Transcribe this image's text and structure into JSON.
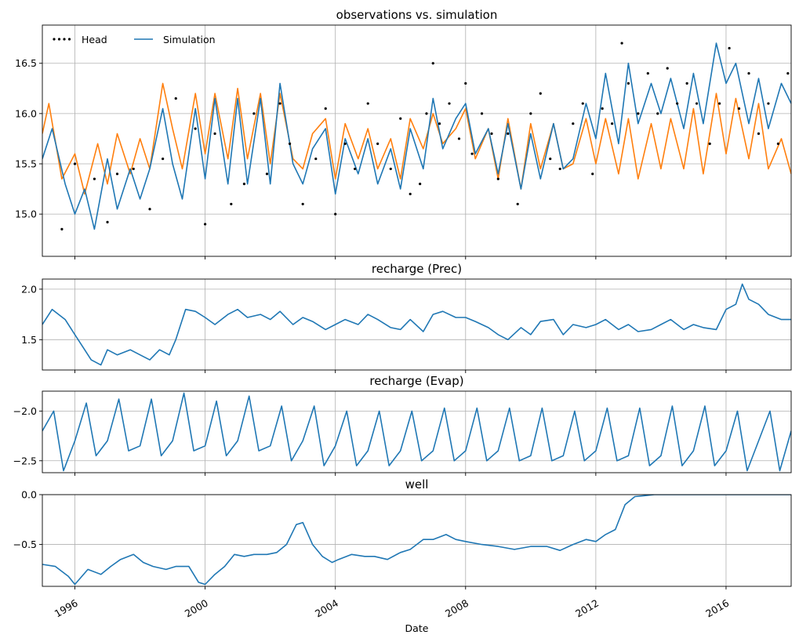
{
  "chart_data": [
    {
      "type": "line",
      "title": "observations vs. simulation",
      "xlabel": "",
      "ylabel": "",
      "xlim": [
        1995.0,
        2018.0
      ],
      "ylim": [
        14.58,
        16.88
      ],
      "yticks": [
        15.0,
        15.5,
        16.0,
        16.5
      ],
      "ytick_labels": [
        "15.0",
        "15.5",
        "16.0",
        "16.5"
      ],
      "grid": true,
      "legend_placement": "top-left",
      "series": [
        {
          "name": "Head",
          "style": "dots",
          "color": "#000000",
          "x": [
            1995.6,
            1996.0,
            1996.6,
            1997.0,
            1997.3,
            1997.8,
            1998.3,
            1998.7,
            1999.1,
            1999.7,
            2000.0,
            2000.3,
            2000.8,
            2001.2,
            2001.5,
            2001.9,
            2002.3,
            2002.6,
            2003.0,
            2003.4,
            2003.7,
            2004.0,
            2004.3,
            2004.6,
            2005.0,
            2005.3,
            2005.7,
            2006.0,
            2006.3,
            2006.6,
            2006.8,
            2007.0,
            2007.2,
            2007.5,
            2007.8,
            2008.0,
            2008.2,
            2008.5,
            2008.8,
            2009.0,
            2009.3,
            2009.6,
            2010.0,
            2010.3,
            2010.6,
            2010.9,
            2011.3,
            2011.6,
            2011.9,
            2012.2,
            2012.5,
            2012.8,
            2013.0,
            2013.3,
            2013.6,
            2013.9,
            2014.2,
            2014.5,
            2014.8,
            2015.1,
            2015.5,
            2015.8,
            2016.1,
            2016.4,
            2016.7,
            2017.0,
            2017.3,
            2017.6,
            2017.9
          ],
          "y": [
            14.85,
            15.5,
            15.35,
            14.92,
            15.4,
            15.45,
            15.05,
            15.55,
            16.15,
            15.85,
            14.9,
            15.8,
            15.1,
            15.3,
            16.0,
            15.4,
            16.1,
            15.7,
            15.1,
            15.55,
            16.05,
            15.0,
            15.7,
            15.45,
            16.1,
            15.7,
            15.45,
            15.95,
            15.2,
            15.3,
            16.0,
            16.5,
            15.9,
            16.1,
            15.75,
            16.3,
            15.6,
            16.0,
            15.8,
            15.35,
            15.8,
            15.1,
            16.0,
            16.2,
            15.55,
            15.45,
            15.9,
            16.1,
            15.4,
            16.05,
            15.9,
            16.7,
            16.3,
            16.0,
            16.4,
            16.0,
            16.45,
            16.1,
            16.3,
            16.1,
            15.7,
            16.1,
            16.65,
            16.05,
            16.4,
            15.8,
            16.1,
            15.7,
            16.4
          ]
        },
        {
          "name": "Simulation",
          "color": "#1f77b4",
          "x": [
            1995.0,
            1995.3,
            1995.7,
            1996.0,
            1996.3,
            1996.6,
            1997.0,
            1997.3,
            1997.7,
            1998.0,
            1998.3,
            1998.7,
            1999.0,
            1999.3,
            1999.7,
            2000.0,
            2000.3,
            2000.7,
            2001.0,
            2001.3,
            2001.7,
            2002.0,
            2002.3,
            2002.7,
            2003.0,
            2003.3,
            2003.7,
            2004.0,
            2004.3,
            2004.7,
            2005.0,
            2005.3,
            2005.7,
            2006.0,
            2006.3,
            2006.7,
            2007.0,
            2007.3,
            2007.7,
            2008.0,
            2008.3,
            2008.7,
            2009.0,
            2009.3,
            2009.7,
            2010.0,
            2010.3,
            2010.7,
            2011.0,
            2011.3,
            2011.7,
            2012.0,
            2012.3,
            2012.7,
            2013.0,
            2013.3,
            2013.7,
            2014.0,
            2014.3,
            2014.7,
            2015.0,
            2015.3,
            2015.7,
            2016.0,
            2016.3,
            2016.7,
            2017.0,
            2017.3,
            2017.7,
            2018.0
          ],
          "y": [
            15.55,
            15.85,
            15.3,
            15.0,
            15.25,
            14.85,
            15.55,
            15.05,
            15.45,
            15.15,
            15.45,
            16.05,
            15.5,
            15.15,
            16.05,
            15.35,
            16.15,
            15.3,
            16.15,
            15.3,
            16.15,
            15.3,
            16.3,
            15.5,
            15.3,
            15.65,
            15.85,
            15.2,
            15.75,
            15.4,
            15.75,
            15.3,
            15.65,
            15.25,
            15.85,
            15.45,
            16.15,
            15.65,
            15.95,
            16.1,
            15.6,
            15.85,
            15.4,
            15.9,
            15.25,
            15.8,
            15.35,
            15.9,
            15.45,
            15.55,
            16.1,
            15.75,
            16.4,
            15.7,
            16.5,
            15.9,
            16.3,
            16.0,
            16.35,
            15.85,
            16.4,
            15.9,
            16.7,
            16.3,
            16.5,
            15.9,
            16.35,
            15.85,
            16.3,
            16.1
          ]
        },
        {
          "name": "",
          "color": "#ff7f0e",
          "x": [
            1995.0,
            1995.2,
            1995.6,
            1996.0,
            1996.3,
            1996.7,
            1997.0,
            1997.3,
            1997.7,
            1998.0,
            1998.3,
            1998.7,
            1999.0,
            1999.3,
            1999.7,
            2000.0,
            2000.3,
            2000.7,
            2001.0,
            2001.3,
            2001.7,
            2002.0,
            2002.3,
            2002.7,
            2003.0,
            2003.3,
            2003.7,
            2004.0,
            2004.3,
            2004.7,
            2005.0,
            2005.3,
            2005.7,
            2006.0,
            2006.3,
            2006.7,
            2007.0,
            2007.3,
            2007.7,
            2008.0,
            2008.3,
            2008.7,
            2009.0,
            2009.3,
            2009.7,
            2010.0,
            2010.3,
            2010.7,
            2011.0,
            2011.3,
            2011.7,
            2012.0,
            2012.3,
            2012.7,
            2013.0,
            2013.3,
            2013.7,
            2014.0,
            2014.3,
            2014.7,
            2015.0,
            2015.3,
            2015.7,
            2016.0,
            2016.3,
            2016.7,
            2017.0,
            2017.3,
            2017.7,
            2018.0
          ],
          "y": [
            15.8,
            16.1,
            15.35,
            15.6,
            15.2,
            15.7,
            15.3,
            15.8,
            15.4,
            15.75,
            15.45,
            16.3,
            15.85,
            15.45,
            16.2,
            15.6,
            16.2,
            15.55,
            16.25,
            15.55,
            16.2,
            15.5,
            16.2,
            15.55,
            15.45,
            15.8,
            15.95,
            15.35,
            15.9,
            15.55,
            15.85,
            15.45,
            15.75,
            15.35,
            15.95,
            15.65,
            16.0,
            15.7,
            15.85,
            16.05,
            15.55,
            15.85,
            15.35,
            15.95,
            15.25,
            15.9,
            15.45,
            15.9,
            15.45,
            15.5,
            15.95,
            15.5,
            15.95,
            15.4,
            15.95,
            15.35,
            15.9,
            15.45,
            15.95,
            15.45,
            16.05,
            15.4,
            16.2,
            15.6,
            16.15,
            15.55,
            16.1,
            15.45,
            15.75,
            15.4
          ]
        }
      ]
    },
    {
      "type": "line",
      "title": "recharge (Prec)",
      "xlabel": "",
      "ylabel": "",
      "xlim": [
        1995.0,
        2018.0
      ],
      "ylim": [
        1.2,
        2.1
      ],
      "yticks": [
        1.5,
        2.0
      ],
      "ytick_labels": [
        "1.5",
        "2.0"
      ],
      "grid": true,
      "series": [
        {
          "name": "",
          "color": "#1f77b4",
          "x": [
            1995.0,
            1995.3,
            1995.7,
            1996.0,
            1996.3,
            1996.5,
            1996.8,
            1997.0,
            1997.3,
            1997.7,
            1998.0,
            1998.3,
            1998.6,
            1998.9,
            1999.1,
            1999.4,
            1999.7,
            2000.0,
            2000.3,
            2000.7,
            2001.0,
            2001.3,
            2001.7,
            2002.0,
            2002.3,
            2002.7,
            2003.0,
            2003.3,
            2003.7,
            2004.0,
            2004.3,
            2004.7,
            2005.0,
            2005.3,
            2005.7,
            2006.0,
            2006.3,
            2006.7,
            2007.0,
            2007.3,
            2007.7,
            2008.0,
            2008.3,
            2008.7,
            2009.0,
            2009.3,
            2009.7,
            2010.0,
            2010.3,
            2010.7,
            2011.0,
            2011.3,
            2011.7,
            2012.0,
            2012.3,
            2012.7,
            2013.0,
            2013.3,
            2013.7,
            2014.0,
            2014.3,
            2014.7,
            2015.0,
            2015.3,
            2015.7,
            2016.0,
            2016.3,
            2016.5,
            2016.7,
            2017.0,
            2017.3,
            2017.7,
            2018.0
          ],
          "y": [
            1.65,
            1.8,
            1.7,
            1.55,
            1.4,
            1.3,
            1.25,
            1.4,
            1.35,
            1.4,
            1.35,
            1.3,
            1.4,
            1.35,
            1.5,
            1.8,
            1.78,
            1.72,
            1.65,
            1.75,
            1.8,
            1.72,
            1.75,
            1.7,
            1.78,
            1.65,
            1.72,
            1.68,
            1.6,
            1.65,
            1.7,
            1.65,
            1.75,
            1.7,
            1.62,
            1.6,
            1.7,
            1.58,
            1.75,
            1.78,
            1.72,
            1.72,
            1.68,
            1.62,
            1.55,
            1.5,
            1.62,
            1.55,
            1.68,
            1.7,
            1.55,
            1.65,
            1.62,
            1.65,
            1.7,
            1.6,
            1.65,
            1.58,
            1.6,
            1.65,
            1.7,
            1.6,
            1.65,
            1.62,
            1.6,
            1.8,
            1.85,
            2.05,
            1.9,
            1.85,
            1.75,
            1.7,
            1.7
          ]
        }
      ]
    },
    {
      "type": "line",
      "title": "recharge (Evap)",
      "xlabel": "",
      "ylabel": "",
      "xlim": [
        1995.0,
        2018.0
      ],
      "ylim": [
        -2.62,
        -1.8
      ],
      "yticks": [
        -2.5,
        -2.0
      ],
      "ytick_labels": [
        "−2.5",
        "−2.0"
      ],
      "grid": true,
      "series": [
        {
          "name": "",
          "color": "#1f77b4",
          "x": [
            1995.0,
            1995.35,
            1995.65,
            1996.0,
            1996.35,
            1996.65,
            1997.0,
            1997.35,
            1997.65,
            1998.0,
            1998.35,
            1998.65,
            1999.0,
            1999.35,
            1999.65,
            2000.0,
            2000.35,
            2000.65,
            2001.0,
            2001.35,
            2001.65,
            2002.0,
            2002.35,
            2002.65,
            2003.0,
            2003.35,
            2003.65,
            2004.0,
            2004.35,
            2004.65,
            2005.0,
            2005.35,
            2005.65,
            2006.0,
            2006.35,
            2006.65,
            2007.0,
            2007.35,
            2007.65,
            2008.0,
            2008.35,
            2008.65,
            2009.0,
            2009.35,
            2009.65,
            2010.0,
            2010.35,
            2010.65,
            2011.0,
            2011.35,
            2011.65,
            2012.0,
            2012.35,
            2012.65,
            2013.0,
            2013.35,
            2013.65,
            2014.0,
            2014.35,
            2014.65,
            2015.0,
            2015.35,
            2015.65,
            2016.0,
            2016.35,
            2016.65,
            2017.0,
            2017.35,
            2017.65,
            2018.0
          ],
          "y": [
            -2.2,
            -2.0,
            -2.6,
            -2.3,
            -1.92,
            -2.45,
            -2.3,
            -1.88,
            -2.4,
            -2.35,
            -1.88,
            -2.45,
            -2.3,
            -1.82,
            -2.4,
            -2.35,
            -1.9,
            -2.45,
            -2.3,
            -1.85,
            -2.4,
            -2.35,
            -1.95,
            -2.5,
            -2.3,
            -1.95,
            -2.55,
            -2.35,
            -2.0,
            -2.55,
            -2.4,
            -2.0,
            -2.55,
            -2.4,
            -2.0,
            -2.5,
            -2.4,
            -1.97,
            -2.5,
            -2.4,
            -1.97,
            -2.5,
            -2.4,
            -1.97,
            -2.5,
            -2.45,
            -1.97,
            -2.5,
            -2.45,
            -2.0,
            -2.5,
            -2.4,
            -1.97,
            -2.5,
            -2.45,
            -1.97,
            -2.55,
            -2.45,
            -1.95,
            -2.55,
            -2.4,
            -1.95,
            -2.55,
            -2.4,
            -2.0,
            -2.6,
            -2.3,
            -2.0,
            -2.6,
            -2.2
          ]
        }
      ]
    },
    {
      "type": "line",
      "title": "well",
      "xlabel": "Date",
      "ylabel": "",
      "xlim": [
        1995.0,
        2018.0
      ],
      "ylim": [
        -0.92,
        0.0
      ],
      "yticks": [
        -0.5,
        0.0
      ],
      "ytick_labels": [
        "−0.5",
        "0.0"
      ],
      "xticks": [
        1996,
        2000,
        2004,
        2008,
        2012,
        2016
      ],
      "xtick_labels": [
        "1996",
        "2000",
        "2004",
        "2008",
        "2012",
        "2016"
      ],
      "grid": true,
      "series": [
        {
          "name": "",
          "color": "#1f77b4",
          "x": [
            1995.0,
            1995.4,
            1995.8,
            1996.0,
            1996.4,
            1996.8,
            1997.1,
            1997.4,
            1997.8,
            1998.1,
            1998.4,
            1998.8,
            1999.1,
            1999.5,
            1999.8,
            2000.0,
            2000.3,
            2000.6,
            2000.9,
            2001.2,
            2001.5,
            2001.9,
            2002.2,
            2002.5,
            2002.8,
            2003.0,
            2003.3,
            2003.6,
            2003.9,
            2004.1,
            2004.5,
            2004.9,
            2005.2,
            2005.6,
            2006.0,
            2006.3,
            2006.7,
            2007.0,
            2007.4,
            2007.7,
            2008.0,
            2008.5,
            2009.0,
            2009.5,
            2010.0,
            2010.5,
            2010.9,
            2011.3,
            2011.7,
            2012.0,
            2012.3,
            2012.6,
            2012.9,
            2013.2,
            2013.5,
            2013.8,
            2014.2,
            2014.6,
            2015.0,
            2016.0,
            2017.0,
            2018.0
          ],
          "y": [
            -0.7,
            -0.72,
            -0.82,
            -0.9,
            -0.75,
            -0.8,
            -0.72,
            -0.65,
            -0.6,
            -0.68,
            -0.72,
            -0.75,
            -0.72,
            -0.72,
            -0.88,
            -0.9,
            -0.8,
            -0.72,
            -0.6,
            -0.62,
            -0.6,
            -0.6,
            -0.58,
            -0.5,
            -0.3,
            -0.28,
            -0.5,
            -0.62,
            -0.68,
            -0.65,
            -0.6,
            -0.62,
            -0.62,
            -0.65,
            -0.58,
            -0.55,
            -0.45,
            -0.45,
            -0.4,
            -0.45,
            -0.47,
            -0.5,
            -0.52,
            -0.55,
            -0.52,
            -0.52,
            -0.56,
            -0.5,
            -0.45,
            -0.47,
            -0.4,
            -0.35,
            -0.1,
            -0.02,
            -0.01,
            0.0,
            0.0,
            0.0,
            0.0,
            0.0,
            0.0,
            0.0
          ]
        }
      ]
    }
  ]
}
